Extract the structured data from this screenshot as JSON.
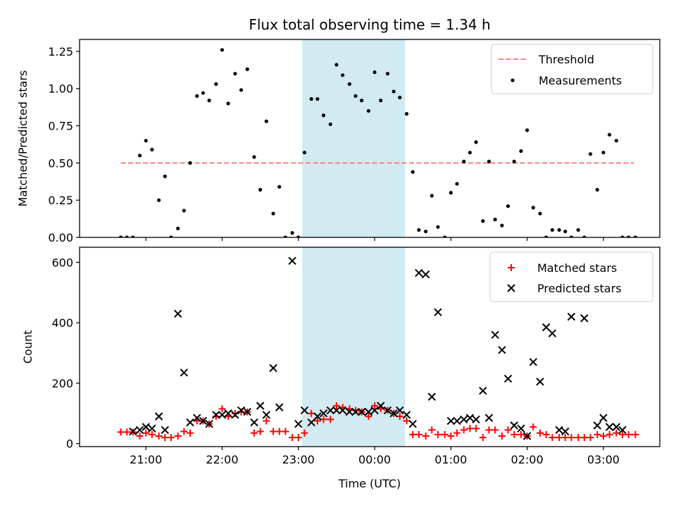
{
  "chart_data": [
    {
      "type": "scatter",
      "title": "Flux total observing time = 1.34 h",
      "xlabel": "",
      "ylabel": "Matched/Predicted stars",
      "ylim": [
        0,
        1.33
      ],
      "yticks": [
        "0.00",
        "0.25",
        "0.50",
        "0.75",
        "1.00",
        "1.25"
      ],
      "ytick_values": [
        0,
        0.25,
        0.5,
        0.75,
        1.0,
        1.25
      ],
      "legend_position": "top-right",
      "shaded_band_hours": [
        23.05,
        0.4
      ],
      "colors": {
        "threshold": "#ff7f7f",
        "measurements": "#000000",
        "band": "#add8e6"
      },
      "threshold": {
        "name": "Threshold",
        "value": 0.5,
        "x_range_hours": [
          20.67,
          3.4
        ]
      },
      "measurements": {
        "name": "Measurements",
        "x_hours": [
          20.67,
          20.75,
          20.83,
          20.92,
          21.0,
          21.08,
          21.17,
          21.25,
          21.33,
          21.42,
          21.5,
          21.58,
          21.67,
          21.75,
          21.83,
          21.92,
          22.0,
          22.08,
          22.17,
          22.25,
          22.33,
          22.42,
          22.5,
          22.58,
          22.67,
          22.75,
          22.83,
          22.92,
          23.0,
          23.08,
          23.17,
          23.25,
          23.33,
          23.42,
          23.5,
          23.58,
          23.67,
          23.75,
          23.83,
          23.92,
          24.0,
          24.08,
          24.17,
          24.25,
          24.33,
          24.42,
          24.5,
          24.58,
          24.67,
          24.75,
          24.83,
          24.92,
          25.0,
          25.08,
          25.17,
          25.25,
          25.33,
          25.42,
          25.5,
          25.58,
          25.67,
          25.75,
          25.83,
          25.92,
          26.0,
          26.08,
          26.17,
          26.25,
          26.33,
          26.42,
          26.5,
          26.58,
          26.67,
          26.75,
          26.83,
          26.92,
          27.0,
          27.08,
          27.17,
          27.25,
          27.33,
          27.42
        ],
        "y": [
          0.0,
          0.0,
          0.0,
          0.55,
          0.65,
          0.59,
          0.25,
          0.41,
          0.0,
          0.06,
          0.18,
          0.5,
          0.95,
          0.97,
          0.92,
          1.03,
          1.26,
          0.9,
          1.1,
          0.99,
          1.13,
          0.54,
          0.32,
          0.78,
          0.16,
          0.34,
          0.0,
          0.03,
          0.0,
          0.57,
          0.93,
          0.93,
          0.82,
          0.76,
          1.16,
          1.09,
          1.03,
          0.95,
          0.92,
          0.85,
          1.11,
          0.92,
          1.1,
          0.98,
          0.94,
          0.83,
          0.44,
          0.05,
          0.04,
          0.28,
          0.07,
          0.0,
          0.3,
          0.36,
          0.51,
          0.57,
          0.64,
          0.11,
          0.51,
          0.12,
          0.08,
          0.21,
          0.51,
          0.58,
          0.72,
          0.2,
          0.16,
          0.0,
          0.05,
          0.05,
          0.04,
          0.0,
          0.05,
          0.0,
          0.56,
          0.32,
          0.57,
          0.69,
          0.65,
          0.0,
          0.0,
          0.0
        ]
      }
    },
    {
      "type": "scatter",
      "title": "",
      "xlabel": "Time (UTC)",
      "ylabel": "Count",
      "ylim": [
        -10,
        650
      ],
      "yticks": [
        "0",
        "200",
        "400",
        "600"
      ],
      "ytick_values": [
        0,
        200,
        400,
        600
      ],
      "xticks": [
        "21:00",
        "22:00",
        "23:00",
        "00:00",
        "01:00",
        "02:00",
        "03:00"
      ],
      "xtick_hours": [
        21,
        22,
        23,
        24,
        25,
        26,
        27
      ],
      "xlim_hours": [
        20.13,
        27.74
      ],
      "legend_position": "top-right",
      "shaded_band_hours": [
        23.05,
        0.4
      ],
      "colors": {
        "matched": "#ff0000",
        "predicted": "#000000",
        "band": "#add8e6"
      },
      "series": [
        {
          "name": "Matched stars",
          "marker": "+",
          "x_hours": [
            20.67,
            20.75,
            20.83,
            20.92,
            21.0,
            21.08,
            21.17,
            21.25,
            21.33,
            21.42,
            21.5,
            21.58,
            21.67,
            21.75,
            21.83,
            21.92,
            22.0,
            22.08,
            22.17,
            22.25,
            22.33,
            22.42,
            22.5,
            22.58,
            22.67,
            22.75,
            22.83,
            22.92,
            23.0,
            23.08,
            23.17,
            23.25,
            23.33,
            23.42,
            23.5,
            23.58,
            23.67,
            23.75,
            23.83,
            23.92,
            24.0,
            24.08,
            24.17,
            24.25,
            24.33,
            24.42,
            24.5,
            24.58,
            24.67,
            24.75,
            24.83,
            24.92,
            25.0,
            25.08,
            25.17,
            25.25,
            25.33,
            25.42,
            25.5,
            25.58,
            25.67,
            25.75,
            25.83,
            25.92,
            26.0,
            26.08,
            26.17,
            26.25,
            26.33,
            26.42,
            26.5,
            26.58,
            26.67,
            26.75,
            26.83,
            26.92,
            27.0,
            27.08,
            27.17,
            27.25,
            27.33,
            27.42
          ],
          "y": [
            38,
            38,
            38,
            25,
            35,
            30,
            25,
            20,
            20,
            25,
            40,
            35,
            75,
            75,
            65,
            90,
            115,
            90,
            100,
            105,
            105,
            35,
            40,
            75,
            40,
            40,
            40,
            20,
            20,
            35,
            100,
            75,
            80,
            80,
            125,
            120,
            115,
            110,
            105,
            90,
            125,
            115,
            110,
            100,
            90,
            75,
            30,
            30,
            25,
            45,
            30,
            30,
            25,
            35,
            45,
            50,
            50,
            20,
            45,
            45,
            25,
            45,
            30,
            30,
            25,
            55,
            35,
            30,
            20,
            20,
            20,
            20,
            20,
            20,
            20,
            30,
            25,
            30,
            35,
            30,
            30,
            30
          ]
        },
        {
          "name": "Predicted stars",
          "marker": "x",
          "x_hours": [
            20.83,
            20.92,
            21.0,
            21.08,
            21.17,
            21.25,
            21.42,
            21.5,
            21.58,
            21.67,
            21.75,
            21.83,
            21.92,
            22.0,
            22.08,
            22.17,
            22.25,
            22.33,
            22.42,
            22.5,
            22.58,
            22.67,
            22.75,
            22.92,
            23.0,
            23.08,
            23.17,
            23.25,
            23.33,
            23.42,
            23.5,
            23.58,
            23.67,
            23.75,
            23.83,
            23.92,
            24.0,
            24.08,
            24.17,
            24.25,
            24.33,
            24.42,
            24.5,
            24.58,
            24.67,
            24.75,
            24.83,
            25.0,
            25.08,
            25.17,
            25.25,
            25.33,
            25.42,
            25.5,
            25.58,
            25.67,
            25.75,
            25.83,
            25.92,
            26.0,
            26.08,
            26.17,
            26.25,
            26.33,
            26.42,
            26.5,
            26.58,
            26.75,
            26.92,
            27.0,
            27.08,
            27.17,
            27.25
          ],
          "y": [
            40,
            45,
            55,
            50,
            90,
            45,
            430,
            235,
            70,
            85,
            75,
            65,
            95,
            95,
            100,
            95,
            110,
            105,
            70,
            125,
            95,
            250,
            120,
            605,
            65,
            110,
            70,
            90,
            100,
            110,
            110,
            110,
            105,
            105,
            105,
            105,
            110,
            125,
            110,
            100,
            110,
            95,
            65,
            565,
            560,
            155,
            435,
            75,
            75,
            80,
            85,
            80,
            175,
            85,
            360,
            310,
            215,
            60,
            50,
            25,
            270,
            205,
            385,
            365,
            45,
            40,
            420,
            415,
            60,
            85,
            55,
            55,
            45
          ]
        }
      ]
    }
  ]
}
